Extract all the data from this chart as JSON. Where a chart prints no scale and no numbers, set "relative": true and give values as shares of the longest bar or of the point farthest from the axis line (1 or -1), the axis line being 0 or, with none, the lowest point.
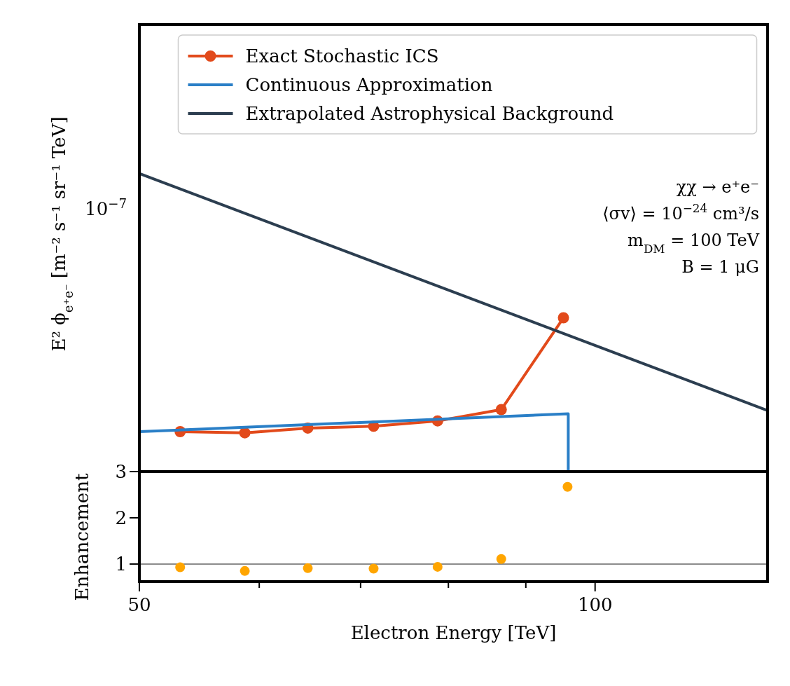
{
  "chart_data": [
    {
      "type": "line",
      "ylabel": "E² ϕ$_{e⁺e⁻}$ [m⁻² s⁻¹ sr⁻¹ TeV]",
      "log": "x",
      "relative": true,
      "xlim": [
        50,
        130
      ],
      "legend": "top",
      "marker": "none",
      "annotations": [
        "10$^{−7}$",
        "χχ → e⁺e⁻",
        "⟨σv⟩ = 10$^{−24}$ cm³/s",
        "m$_{DM}$ = 100 TeV",
        "B = 1 μG"
      ],
      "series": [
        {
          "name": "Exact Stochastic ICS",
          "color": "#e24a1b",
          "marker": "circle",
          "x": [
            53.2,
            58.7,
            64.6,
            71.4,
            78.7,
            86.7,
            95.3
          ],
          "values": [
            0.134,
            0.13,
            0.146,
            0.152,
            0.17,
            0.208,
            0.516
          ]
        },
        {
          "name": "Continuous Approximation",
          "color": "#2a7fc7",
          "x": [
            50,
            96,
            96
          ],
          "values": [
            0.134,
            0.194,
            0
          ]
        },
        {
          "name": "Extrapolated Astrophysical Background",
          "color": "#2c3e50",
          "x": [
            50,
            130
          ],
          "values": [
            1,
            0.205
          ]
        }
      ]
    },
    {
      "type": "scatter",
      "xlabel": "Electron Energy [TeV]",
      "ylabel": "Enhancement",
      "log": "x",
      "xlim": [
        50,
        130
      ],
      "ylim": [
        0.62,
        3
      ],
      "xticks": [
        50,
        {
          "value": 60,
          "label": null
        },
        {
          "value": 70,
          "label": null
        },
        {
          "value": 80,
          "label": null
        },
        {
          "value": 90,
          "label": null
        },
        100
      ],
      "yticks": [
        1,
        2,
        3
      ],
      "marker": "circle",
      "ref_lines": [
        {
          "axis": "y",
          "value": 1,
          "color": "#666666"
        }
      ],
      "series": [
        {
          "color": "#ffa500",
          "x": [
            53.2,
            58.7,
            64.6,
            71.4,
            78.7,
            86.7,
            95.9
          ],
          "values": [
            0.93,
            0.85,
            0.91,
            0.9,
            0.94,
            1.11,
            2.67
          ]
        }
      ]
    }
  ]
}
